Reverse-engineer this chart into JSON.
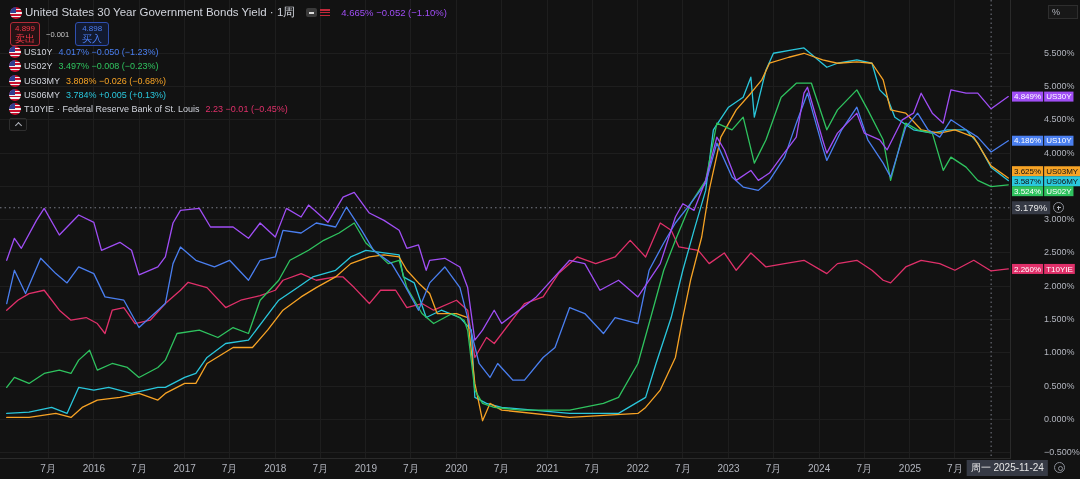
{
  "chart_data": {
    "type": "line",
    "title": "United States 30 Year Government Bonds Yield · 1周",
    "ylabel": "%",
    "legend": "top left",
    "grid": true,
    "marker": "none",
    "line_style": "solid",
    "xlim": [
      "2014-12-19",
      "2026-02-08"
    ],
    "xticks": [
      {
        "value": "2015-07",
        "label": "7月"
      },
      "2016",
      {
        "value": "2016-07",
        "label": "7月"
      },
      "2017",
      {
        "value": "2017-07",
        "label": "7月"
      },
      "2018",
      {
        "value": "2018-07",
        "label": "7月"
      },
      "2019",
      {
        "value": "2019-07",
        "label": "7月"
      },
      "2020",
      {
        "value": "2020-07",
        "label": "7月"
      },
      "2021",
      {
        "value": "2021-07",
        "label": "7月"
      },
      "2022",
      {
        "value": "2022-07",
        "label": "7月"
      },
      "2023",
      {
        "value": "2023-07",
        "label": "7月"
      },
      "2024",
      {
        "value": "2024-07",
        "label": "7月"
      },
      "2025",
      {
        "value": "2025-07",
        "label": "7月"
      }
    ],
    "ylim": [
      -0.58,
      6.3
    ],
    "yticks": [
      {
        "value": -0.5,
        "label": "−0.500%"
      },
      {
        "value": 0,
        "label": "0.000%"
      },
      {
        "value": 0.5,
        "label": "0.500%"
      },
      {
        "value": 1,
        "label": "1.000%"
      },
      {
        "value": 1.5,
        "label": "1.500%"
      },
      {
        "value": 2,
        "label": "2.000%"
      },
      {
        "value": 2.5,
        "label": "2.500%"
      },
      {
        "value": 3,
        "label": "3.000%"
      },
      {
        "value": 3.5,
        "label": null
      },
      {
        "value": 4,
        "label": "4.000%"
      },
      {
        "value": 4.5,
        "label": "4.500%"
      },
      {
        "value": 5,
        "label": "5.000%"
      },
      {
        "value": 5.5,
        "label": "5.500%"
      }
    ],
    "ref_lines": [
      {
        "axis": "y",
        "value": 3.179,
        "label": "3.179%",
        "line_style": "dotted",
        "color": "#787b86"
      },
      {
        "axis": "x",
        "value": "2025-11-24",
        "label": "周一 2025-11-24",
        "line_style": "dotted",
        "color": "#787b86"
      }
    ],
    "annotations": [
      "4.665% −0.052 (−1.10%)",
      "4.899",
      "卖出",
      "−0.001",
      "4.898",
      "买入",
      "4.017% −0.050 (−1.23%)",
      "3.497% −0.008 (−0.23%)",
      "3.808% −0.026 (−0.68%)",
      "3.784% +0.005 (+0.13%)",
      "2.23 −0.01 (−0.45%)",
      "· Federal Reserve Bank of St. Louis"
    ],
    "series": [
      {
        "name": "US30Y",
        "color": "#a04ef5",
        "x": [
          "2015-01-15",
          "2015-02-15",
          "2015-03-15",
          "2015-05-15",
          "2015-06-15",
          "2015-08-15",
          "2015-11-01",
          "2016-01-01",
          "2016-02-01",
          "2016-04-15",
          "2016-06-01",
          "2016-07-01",
          "2016-09-15",
          "2016-10-15",
          "2016-11-15",
          "2016-12-15",
          "2017-03-01",
          "2017-04-15",
          "2017-07-15",
          "2017-09-15",
          "2017-11-01",
          "2018-01-01",
          "2018-02-15",
          "2018-04-15",
          "2018-05-15",
          "2018-08-01",
          "2018-10-01",
          "2018-11-15",
          "2019-01-15",
          "2019-03-15",
          "2019-05-15",
          "2019-06-15",
          "2019-08-01",
          "2019-09-01",
          "2019-09-15",
          "2019-11-15",
          "2020-01-15",
          "2020-02-15",
          "2020-03-15",
          "2020-04-15",
          "2020-06-01",
          "2020-07-01",
          "2020-11-15",
          "2021-04-01",
          "2021-06-01",
          "2021-08-01",
          "2021-10-15",
          "2022-01-01",
          "2022-04-01",
          "2022-06-01",
          "2022-07-01",
          "2022-08-15",
          "2022-10-01",
          "2022-11-15",
          "2022-12-15",
          "2023-02-01",
          "2023-04-01",
          "2023-05-01",
          "2023-06-15",
          "2023-08-01",
          "2023-10-01",
          "2023-11-01",
          "2023-11-15",
          "2024-01-15",
          "2024-02-01",
          "2024-03-15",
          "2024-06-01",
          "2024-07-01",
          "2024-09-01",
          "2024-10-01",
          "2024-12-01",
          "2025-01-15",
          "2025-02-15",
          "2025-04-01",
          "2025-05-15",
          "2025-06-15",
          "2025-08-15",
          "2025-10-01",
          "2025-11-24",
          "2026-02-01"
        ],
        "values": [
          2.39,
          2.72,
          2.57,
          2.99,
          3.17,
          2.77,
          3.07,
          2.96,
          2.54,
          2.66,
          2.54,
          2.17,
          2.29,
          2.44,
          2.95,
          3.14,
          3.17,
          2.89,
          2.89,
          2.72,
          2.95,
          2.74,
          3.17,
          3.04,
          3.22,
          2.96,
          3.34,
          3.41,
          3.1,
          2.99,
          2.84,
          2.57,
          2.62,
          2.24,
          2.39,
          2.42,
          2.29,
          1.98,
          1.19,
          1.34,
          1.64,
          1.44,
          1.83,
          2.39,
          2.34,
          1.94,
          2.09,
          1.84,
          2.34,
          3.04,
          3.24,
          3.14,
          3.59,
          4.24,
          4.05,
          3.59,
          3.74,
          3.59,
          3.7,
          3.94,
          4.24,
          4.9,
          4.99,
          4.2,
          4.0,
          4.3,
          4.6,
          4.3,
          4.2,
          4.05,
          4.5,
          4.6,
          4.9,
          4.6,
          4.45,
          4.95,
          4.9,
          4.9,
          4.665,
          4.849
        ],
        "value_labels": [
          null,
          null,
          null,
          null,
          null,
          null,
          null,
          null,
          null,
          null,
          null,
          null,
          null,
          null,
          null,
          null,
          null,
          null,
          null,
          null,
          null,
          null,
          null,
          null,
          null,
          null,
          null,
          null,
          null,
          null,
          null,
          null,
          null,
          null,
          null,
          null,
          null,
          null,
          null,
          null,
          null,
          null,
          null,
          null,
          null,
          null,
          null,
          null,
          null,
          null,
          null,
          null,
          null,
          null,
          null,
          null,
          null,
          null,
          null,
          null,
          null,
          null,
          null,
          null,
          null,
          null,
          null,
          null,
          null,
          null,
          null,
          null,
          null,
          null,
          null,
          null,
          null,
          null,
          null,
          "4.849%"
        ]
      },
      {
        "name": "US10Y",
        "color": "#4a7ff0",
        "x": [
          "2015-01-15",
          "2015-02-15",
          "2015-04-01",
          "2015-06-01",
          "2015-08-01",
          "2015-09-15",
          "2015-11-01",
          "2016-01-01",
          "2016-02-15",
          "2016-05-01",
          "2016-07-01",
          "2016-09-01",
          "2016-10-15",
          "2016-11-15",
          "2016-12-15",
          "2017-02-15",
          "2017-05-01",
          "2017-07-01",
          "2017-09-15",
          "2017-11-01",
          "2018-01-01",
          "2018-02-01",
          "2018-04-15",
          "2018-06-15",
          "2018-09-01",
          "2018-10-15",
          "2018-12-15",
          "2019-02-01",
          "2019-04-15",
          "2019-06-01",
          "2019-08-01",
          "2019-09-15",
          "2019-11-15",
          "2020-01-15",
          "2020-02-15",
          "2020-04-01",
          "2020-05-15",
          "2020-06-15",
          "2020-08-15",
          "2020-10-01",
          "2020-12-15",
          "2021-02-01",
          "2021-04-01",
          "2021-06-01",
          "2021-08-15",
          "2021-10-01",
          "2022-01-01",
          "2022-02-15",
          "2022-04-15",
          "2022-06-01",
          "2022-08-01",
          "2022-10-01",
          "2022-11-15",
          "2023-01-15",
          "2023-03-01",
          "2023-05-01",
          "2023-06-15",
          "2023-08-15",
          "2023-10-01",
          "2023-11-15",
          "2024-01-15",
          "2024-02-01",
          "2024-04-01",
          "2024-06-01",
          "2024-07-15",
          "2024-09-15",
          "2024-10-15",
          "2024-12-15",
          "2025-02-01",
          "2025-03-15",
          "2025-05-01",
          "2025-06-15",
          "2025-08-15",
          "2025-10-01",
          "2025-11-24",
          "2026-02-01"
        ],
        "values": [
          1.74,
          2.24,
          1.89,
          2.42,
          2.19,
          2.05,
          2.29,
          2.19,
          1.84,
          1.79,
          1.38,
          1.59,
          1.74,
          2.34,
          2.59,
          2.39,
          2.29,
          2.39,
          2.09,
          2.39,
          2.44,
          2.84,
          2.8,
          2.95,
          2.89,
          3.19,
          2.84,
          2.54,
          2.34,
          2.05,
          1.64,
          2.05,
          2.29,
          1.98,
          1.53,
          0.84,
          0.63,
          0.84,
          0.59,
          0.59,
          0.93,
          1.08,
          1.68,
          1.59,
          1.29,
          1.53,
          1.44,
          2.24,
          2.65,
          2.95,
          3.24,
          3.55,
          4.15,
          3.64,
          3.49,
          3.44,
          3.59,
          3.94,
          4.45,
          4.9,
          4.09,
          3.89,
          4.35,
          4.69,
          4.2,
          3.85,
          3.64,
          4.39,
          4.6,
          4.35,
          4.24,
          4.5,
          4.35,
          4.24,
          4.017,
          4.186
        ],
        "value_labels": [
          null,
          null,
          null,
          null,
          null,
          null,
          null,
          null,
          null,
          null,
          null,
          null,
          null,
          null,
          null,
          null,
          null,
          null,
          null,
          null,
          null,
          null,
          null,
          null,
          null,
          null,
          null,
          null,
          null,
          null,
          null,
          null,
          null,
          null,
          null,
          null,
          null,
          null,
          null,
          null,
          null,
          null,
          null,
          null,
          null,
          null,
          null,
          null,
          null,
          null,
          null,
          null,
          null,
          null,
          null,
          null,
          null,
          null,
          null,
          null,
          null,
          null,
          null,
          null,
          null,
          null,
          null,
          null,
          null,
          null,
          null,
          null,
          null,
          null,
          null,
          "4.186%"
        ]
      },
      {
        "name": "US02Y",
        "color": "#2fc35f",
        "x": [
          "2015-01-15",
          "2015-02-15",
          "2015-04-15",
          "2015-06-15",
          "2015-08-15",
          "2015-10-01",
          "2015-11-01",
          "2015-12-15",
          "2016-01-15",
          "2016-03-15",
          "2016-05-15",
          "2016-07-01",
          "2016-09-15",
          "2016-10-15",
          "2016-12-01",
          "2017-03-01",
          "2017-05-15",
          "2017-07-15",
          "2017-09-15",
          "2017-11-01",
          "2018-01-15",
          "2018-03-01",
          "2018-05-15",
          "2018-07-15",
          "2018-09-15",
          "2018-11-15",
          "2019-01-01",
          "2019-02-15",
          "2019-04-01",
          "2019-05-15",
          "2019-06-15",
          "2019-08-15",
          "2019-10-01",
          "2019-12-15",
          "2020-02-01",
          "2020-02-15",
          "2020-03-15",
          "2020-04-15",
          "2020-06-01",
          "2020-09-15",
          "2021-04-01",
          "2021-08-15",
          "2021-10-15",
          "2022-01-01",
          "2022-02-15",
          "2022-04-15",
          "2022-06-01",
          "2022-08-01",
          "2022-10-01",
          "2022-11-15",
          "2023-01-15",
          "2023-03-01",
          "2023-04-15",
          "2023-06-01",
          "2023-08-01",
          "2023-10-01",
          "2023-12-01",
          "2024-02-01",
          "2024-03-15",
          "2024-06-01",
          "2024-07-15",
          "2024-09-15",
          "2024-10-15",
          "2024-12-15",
          "2025-02-01",
          "2025-04-01",
          "2025-05-15",
          "2025-06-15",
          "2025-08-15",
          "2025-10-01",
          "2025-11-24",
          "2026-02-01"
        ],
        "values": [
          0.48,
          0.63,
          0.54,
          0.69,
          0.74,
          0.69,
          0.89,
          1.04,
          0.74,
          0.84,
          0.78,
          0.63,
          0.78,
          0.89,
          1.29,
          1.34,
          1.23,
          1.38,
          1.29,
          1.79,
          2.09,
          2.39,
          2.54,
          2.69,
          2.8,
          2.95,
          2.65,
          2.5,
          2.34,
          2.39,
          1.98,
          1.59,
          1.44,
          1.59,
          1.49,
          1.34,
          0.44,
          0.24,
          0.18,
          0.14,
          0.14,
          0.24,
          0.33,
          0.84,
          1.44,
          2.24,
          2.69,
          3.24,
          3.59,
          4.45,
          4.35,
          4.54,
          3.85,
          4.2,
          4.84,
          5.05,
          5.05,
          4.35,
          4.65,
          4.95,
          4.65,
          4.2,
          3.59,
          4.45,
          4.35,
          4.3,
          3.74,
          3.94,
          3.79,
          3.59,
          3.497,
          3.524
        ],
        "value_labels": [
          null,
          null,
          null,
          null,
          null,
          null,
          null,
          null,
          null,
          null,
          null,
          null,
          null,
          null,
          null,
          null,
          null,
          null,
          null,
          null,
          null,
          null,
          null,
          null,
          null,
          null,
          null,
          null,
          null,
          null,
          null,
          null,
          null,
          null,
          null,
          null,
          null,
          null,
          null,
          null,
          null,
          null,
          null,
          null,
          null,
          null,
          null,
          null,
          null,
          null,
          null,
          null,
          null,
          null,
          null,
          null,
          null,
          null,
          null,
          null,
          null,
          null,
          null,
          null,
          null,
          null,
          null,
          null,
          null,
          null,
          null,
          "3.524%"
        ]
      },
      {
        "name": "US03MY",
        "color": "#f7a325",
        "x": [
          "2015-01-15",
          "2015-04-15",
          "2015-08-01",
          "2015-10-01",
          "2015-11-15",
          "2016-01-15",
          "2016-04-15",
          "2016-07-01",
          "2016-09-15",
          "2016-10-15",
          "2017-01-01",
          "2017-02-15",
          "2017-04-01",
          "2017-07-15",
          "2017-10-01",
          "2017-12-01",
          "2018-02-01",
          "2018-04-15",
          "2018-06-15",
          "2018-09-01",
          "2018-11-01",
          "2019-01-15",
          "2019-03-15",
          "2019-05-15",
          "2019-06-15",
          "2019-08-01",
          "2019-09-15",
          "2019-10-15",
          "2020-01-01",
          "2020-02-15",
          "2020-03-15",
          "2020-04-15",
          "2020-05-15",
          "2020-07-01",
          "2021-04-01",
          "2022-01-01",
          "2022-02-01",
          "2022-04-01",
          "2022-06-01",
          "2022-07-01",
          "2022-08-01",
          "2022-09-15",
          "2022-10-15",
          "2022-12-01",
          "2023-02-01",
          "2023-04-01",
          "2023-05-15",
          "2023-06-15",
          "2023-09-01",
          "2023-11-01",
          "2024-01-15",
          "2024-03-15",
          "2024-06-01",
          "2024-08-01",
          "2024-09-15",
          "2024-10-15",
          "2024-12-15",
          "2025-02-15",
          "2025-05-01",
          "2025-07-01",
          "2025-09-15",
          "2025-11-24",
          "2026-02-01"
        ],
        "values": [
          0.03,
          0.03,
          0.09,
          0.03,
          0.18,
          0.29,
          0.33,
          0.39,
          0.29,
          0.39,
          0.54,
          0.54,
          0.84,
          1.08,
          1.08,
          1.34,
          1.64,
          1.84,
          1.98,
          2.14,
          2.34,
          2.44,
          2.47,
          2.44,
          2.24,
          2.05,
          1.89,
          1.59,
          1.59,
          1.53,
          0.54,
          -0.02,
          0.24,
          0.14,
          0.03,
          0.09,
          0.18,
          0.44,
          0.93,
          1.53,
          2.09,
          2.74,
          3.44,
          4.24,
          4.65,
          4.9,
          5.1,
          5.35,
          5.44,
          5.5,
          5.4,
          5.35,
          5.37,
          5.35,
          5.1,
          4.65,
          4.6,
          4.35,
          4.3,
          4.35,
          4.24,
          3.808,
          3.625
        ],
        "value_labels": [
          null,
          null,
          null,
          null,
          null,
          null,
          null,
          null,
          null,
          null,
          null,
          null,
          null,
          null,
          null,
          null,
          null,
          null,
          null,
          null,
          null,
          null,
          null,
          null,
          null,
          null,
          null,
          null,
          null,
          null,
          null,
          null,
          null,
          null,
          null,
          null,
          null,
          null,
          null,
          null,
          null,
          null,
          null,
          null,
          null,
          null,
          null,
          null,
          null,
          null,
          null,
          null,
          null,
          null,
          null,
          null,
          null,
          null,
          null,
          null,
          null,
          null,
          "3.625%"
        ]
      },
      {
        "name": "US06MY",
        "color": "#2ac7dc",
        "x": [
          "2015-01-15",
          "2015-04-15",
          "2015-07-15",
          "2015-09-15",
          "2015-11-01",
          "2016-01-01",
          "2016-03-01",
          "2016-06-01",
          "2016-09-15",
          "2016-10-15",
          "2017-01-01",
          "2017-02-15",
          "2017-04-01",
          "2017-06-15",
          "2017-09-15",
          "2017-11-15",
          "2018-01-15",
          "2018-04-01",
          "2018-06-01",
          "2018-09-01",
          "2018-11-01",
          "2019-01-01",
          "2019-03-01",
          "2019-05-15",
          "2019-06-01",
          "2019-07-15",
          "2019-09-01",
          "2019-11-01",
          "2020-01-15",
          "2020-03-01",
          "2020-03-15",
          "2020-05-01",
          "2020-07-01",
          "2021-04-01",
          "2021-10-15",
          "2022-02-01",
          "2022-03-15",
          "2022-05-15",
          "2022-07-01",
          "2022-08-15",
          "2022-10-01",
          "2022-11-01",
          "2023-01-01",
          "2023-03-01",
          "2023-04-01",
          "2023-04-15",
          "2023-06-01",
          "2023-07-01",
          "2023-09-15",
          "2023-11-01",
          "2024-02-01",
          "2024-03-15",
          "2024-06-01",
          "2024-08-01",
          "2024-09-01",
          "2024-10-01",
          "2024-11-01",
          "2025-01-15",
          "2025-04-01",
          "2025-06-01",
          "2025-08-15",
          "2025-10-01",
          "2025-11-24",
          "2026-02-01"
        ],
        "values": [
          0.09,
          0.11,
          0.18,
          0.09,
          0.48,
          0.44,
          0.48,
          0.39,
          0.48,
          0.48,
          0.63,
          0.69,
          0.93,
          1.14,
          1.19,
          1.49,
          1.79,
          1.98,
          2.14,
          2.24,
          2.44,
          2.54,
          2.51,
          2.47,
          2.14,
          2.05,
          1.53,
          1.64,
          1.53,
          1.34,
          0.33,
          0.24,
          0.18,
          0.09,
          0.09,
          0.33,
          0.84,
          1.53,
          2.24,
          2.84,
          3.44,
          4.35,
          4.69,
          4.84,
          5.14,
          4.54,
          5.25,
          5.5,
          5.55,
          5.58,
          5.29,
          5.35,
          5.4,
          5.35,
          4.95,
          4.84,
          4.54,
          4.35,
          4.3,
          4.35,
          4.35,
          4.15,
          3.784,
          3.587
        ],
        "value_labels": [
          null,
          null,
          null,
          null,
          null,
          null,
          null,
          null,
          null,
          null,
          null,
          null,
          null,
          null,
          null,
          null,
          null,
          null,
          null,
          null,
          null,
          null,
          null,
          null,
          null,
          null,
          null,
          null,
          null,
          null,
          null,
          null,
          null,
          null,
          null,
          null,
          null,
          null,
          null,
          null,
          null,
          null,
          null,
          null,
          null,
          null,
          null,
          null,
          null,
          null,
          null,
          null,
          null,
          null,
          null,
          null,
          null,
          null,
          null,
          null,
          null,
          null,
          null,
          "3.587%"
        ]
      },
      {
        "name": "T10YIE",
        "color": "#e0306a",
        "x": [
          "2015-01-15",
          "2015-03-01",
          "2015-04-15",
          "2015-06-15",
          "2015-08-15",
          "2015-10-01",
          "2015-12-01",
          "2016-01-15",
          "2016-02-15",
          "2016-03-15",
          "2016-05-01",
          "2016-06-15",
          "2016-08-15",
          "2016-10-15",
          "2016-12-15",
          "2017-01-15",
          "2017-04-01",
          "2017-06-15",
          "2017-08-15",
          "2017-11-01",
          "2018-01-01",
          "2018-02-01",
          "2018-04-15",
          "2018-06-15",
          "2018-09-01",
          "2018-10-01",
          "2018-11-15",
          "2019-01-15",
          "2019-03-01",
          "2019-05-01",
          "2019-06-15",
          "2019-08-15",
          "2019-10-01",
          "2020-01-01",
          "2020-02-15",
          "2020-03-15",
          "2020-05-01",
          "2020-06-01",
          "2020-08-01",
          "2020-10-01",
          "2020-12-15",
          "2021-02-15",
          "2021-05-01",
          "2021-07-15",
          "2021-10-01",
          "2021-12-01",
          "2022-02-01",
          "2022-04-01",
          "2022-05-15",
          "2022-06-15",
          "2022-09-01",
          "2022-10-15",
          "2022-12-15",
          "2023-02-01",
          "2023-04-01",
          "2023-06-01",
          "2023-08-15",
          "2023-11-01",
          "2024-02-01",
          "2024-03-15",
          "2024-06-01",
          "2024-08-01",
          "2024-09-15",
          "2024-10-15",
          "2024-12-15",
          "2025-02-15",
          "2025-05-01",
          "2025-07-01",
          "2025-09-15",
          "2025-11-24",
          "2026-02-01"
        ],
        "values": [
          1.64,
          1.79,
          1.89,
          1.94,
          1.64,
          1.49,
          1.53,
          1.44,
          1.29,
          1.64,
          1.68,
          1.44,
          1.49,
          1.74,
          1.94,
          2.06,
          1.98,
          1.68,
          1.79,
          1.86,
          1.94,
          2.09,
          2.19,
          2.09,
          2.14,
          2.14,
          1.98,
          1.74,
          1.94,
          1.94,
          1.68,
          1.74,
          1.64,
          1.79,
          1.64,
          0.93,
          1.23,
          1.14,
          1.44,
          1.74,
          1.84,
          2.19,
          2.44,
          2.34,
          2.44,
          2.69,
          2.44,
          2.95,
          2.84,
          2.59,
          2.54,
          2.34,
          2.5,
          2.24,
          2.5,
          2.29,
          2.34,
          2.39,
          2.19,
          2.34,
          2.39,
          2.24,
          2.09,
          2.05,
          2.29,
          2.39,
          2.34,
          2.24,
          2.39,
          2.23,
          2.26
        ],
        "value_labels": [
          null,
          null,
          null,
          null,
          null,
          null,
          null,
          null,
          null,
          null,
          null,
          null,
          null,
          null,
          null,
          null,
          null,
          null,
          null,
          null,
          null,
          null,
          null,
          null,
          null,
          null,
          null,
          null,
          null,
          null,
          null,
          null,
          null,
          null,
          null,
          null,
          null,
          null,
          null,
          null,
          null,
          null,
          null,
          null,
          null,
          null,
          null,
          null,
          null,
          null,
          null,
          null,
          null,
          null,
          null,
          null,
          null,
          null,
          null,
          null,
          null,
          null,
          null,
          null,
          null,
          null,
          null,
          null,
          null,
          null,
          "2.260%"
        ]
      }
    ]
  }
}
